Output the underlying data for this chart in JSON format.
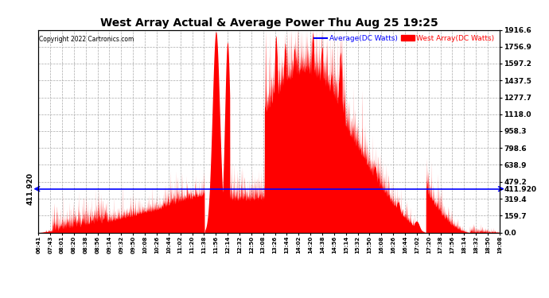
{
  "title": "West Array Actual & Average Power Thu Aug 25 19:25",
  "copyright": "Copyright 2022 Cartronics.com",
  "legend_avg": "Average(DC Watts)",
  "legend_west": "West Array(DC Watts)",
  "avg_value": 411.92,
  "y_right_ticks": [
    0.0,
    159.7,
    319.4,
    479.2,
    638.9,
    798.6,
    958.3,
    1118.0,
    1277.7,
    1437.5,
    1597.2,
    1756.9,
    1916.6
  ],
  "y_left_label": "411.920",
  "y_max": 1916.6,
  "y_min": 0.0,
  "x_labels": [
    "06:41",
    "07:43",
    "08:01",
    "08:20",
    "08:38",
    "08:56",
    "09:14",
    "09:32",
    "09:50",
    "10:08",
    "10:26",
    "10:44",
    "11:02",
    "11:20",
    "11:38",
    "11:56",
    "12:14",
    "12:32",
    "12:50",
    "13:08",
    "13:26",
    "13:44",
    "14:02",
    "14:20",
    "14:38",
    "14:56",
    "15:14",
    "15:32",
    "15:50",
    "16:08",
    "16:26",
    "16:44",
    "17:02",
    "17:20",
    "17:38",
    "17:56",
    "18:14",
    "18:32",
    "18:50",
    "19:08"
  ],
  "avg_color": "#0000ff",
  "west_color": "#ff0000",
  "grid_color": "#aaaaaa",
  "bg_color": "#ffffff",
  "title_color": "#000000",
  "copyright_color": "#000000",
  "avg_line_label_color": "#0000ff",
  "west_label_color": "#ff0000"
}
